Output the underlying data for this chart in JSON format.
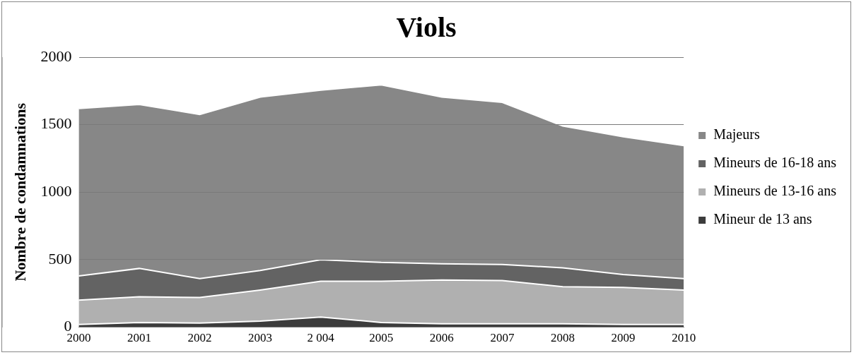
{
  "chart_data": {
    "type": "area",
    "title": "Viols",
    "ylabel": "Nombre de condamnations",
    "stacked": true,
    "categories": [
      "2000",
      "2001",
      "2002",
      "2003",
      "2 004",
      "2005",
      "2006",
      "2007",
      "2008",
      "2009",
      "2010"
    ],
    "series": [
      {
        "name": "Mineur de 13 ans",
        "color": "#3c3c3c",
        "values": [
          20,
          35,
          30,
          45,
          75,
          35,
          25,
          25,
          25,
          20,
          20
        ]
      },
      {
        "name": "Mineurs de 13-16 ans",
        "color": "#b0b0b0",
        "values": [
          180,
          190,
          190,
          230,
          265,
          305,
          325,
          320,
          275,
          275,
          255
        ]
      },
      {
        "name": "Mineurs de 16-18 ans",
        "color": "#636363",
        "values": [
          180,
          210,
          140,
          145,
          160,
          140,
          120,
          120,
          140,
          95,
          85
        ]
      },
      {
        "name": "Majeurs",
        "color": "#878787",
        "values": [
          1240,
          1215,
          1215,
          1285,
          1255,
          1315,
          1235,
          1200,
          1050,
          1020,
          985
        ]
      }
    ],
    "ylim": [
      0,
      2000
    ],
    "yticks": [
      0,
      500,
      1000,
      1500,
      2000
    ],
    "grid": "y",
    "legend": "right"
  }
}
